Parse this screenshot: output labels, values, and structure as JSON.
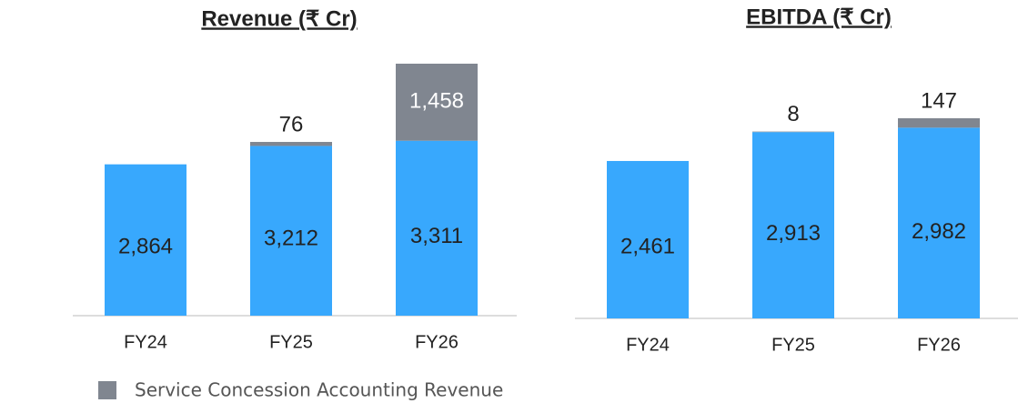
{
  "chart_data": [
    {
      "type": "bar",
      "title": "Revenue (₹ Cr)",
      "categories": [
        "FY24",
        "FY25",
        "FY26"
      ],
      "series": [
        {
          "color": "#38a8fd",
          "values": [
            2864,
            3212,
            3311
          ],
          "value_labels": [
            "2,864",
            "3,212",
            "3,311"
          ]
        },
        {
          "name": "Service Concession Accounting Revenue",
          "color": "#808690",
          "values": [
            null,
            76,
            1458
          ],
          "value_labels": [
            null,
            "76",
            "1,458"
          ]
        }
      ]
    },
    {
      "type": "bar",
      "title": "EBITDA (₹ Cr)",
      "categories": [
        "FY24",
        "FY25",
        "FY26"
      ],
      "series": [
        {
          "color": "#38a8fd",
          "values": [
            2461,
            2913,
            2982
          ],
          "value_labels": [
            "2,461",
            "2,913",
            "2,982"
          ]
        },
        {
          "color": "#808690",
          "values": [
            null,
            8,
            147
          ],
          "value_labels": [
            null,
            "8",
            "147"
          ]
        }
      ]
    }
  ]
}
